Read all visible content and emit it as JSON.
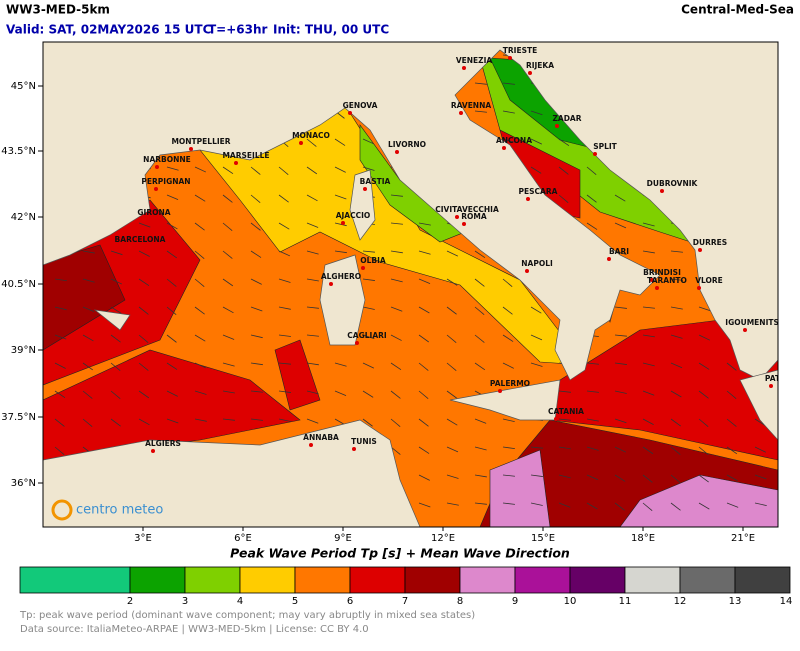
{
  "header": {
    "title": "WW3-MED-5km",
    "region": "Central-Med-Sea",
    "valid": "Valid: SAT, 02MAY2026 15 UTC",
    "lead": "T=+63hr",
    "init": "Init: THU, 00 UTC"
  },
  "map": {
    "lat_labels": [
      "45°N",
      "43.5°N",
      "42°N",
      "40.5°N",
      "39°N",
      "37.5°N",
      "36°N"
    ],
    "lon_labels": [
      "3°E",
      "6°E",
      "9°E",
      "12°E",
      "15°E",
      "18°E",
      "21°E"
    ],
    "cities": [
      "TRIESTE",
      "RIJEKA",
      "VENEZIA",
      "RAVENNA",
      "ZADAR",
      "ANCONA",
      "SPLIT",
      "GENOVA",
      "MONACO",
      "MONTPELLIER",
      "LIVORNO",
      "MARSEILLE",
      "NARBONNE",
      "BASTIA",
      "PERPIGNAN",
      "DUBROVNIK",
      "PESCARA",
      "CIVITAVECCHIA",
      "GIRONA",
      "ROMA",
      "AJACCIO",
      "DURRES",
      "BARCELONA",
      "BARI",
      "OLBIA",
      "NAPOLI",
      "BRINDISI",
      "ALGHERO",
      "TARANTO",
      "VLORE",
      "IGOUMENITSA",
      "CAGLIARI",
      "PATRAS",
      "PALERMO",
      "CATANIA",
      "ANNABA",
      "TUNIS",
      "ALGIERS"
    ],
    "logo": "centro meteo"
  },
  "legend": {
    "title": "Peak Wave Period Tp [s]  +  Mean Wave Direction",
    "ticks": [
      2,
      3,
      4,
      5,
      6,
      7,
      8,
      9,
      10,
      11,
      12,
      13,
      14
    ],
    "colors": [
      "#12c97a",
      "#0ca300",
      "#7fd000",
      "#ffcc00",
      "#ff7700",
      "#dd0000",
      "#a00000",
      "#dd88cc",
      "#aa1199",
      "#660066",
      "#d6d6d0",
      "#6a6a6a",
      "#404040"
    ]
  },
  "footer": [
    "Tp: peak wave period (dominant wave component; may vary abruptly in mixed sea states)",
    "Data source: ItaliaMeteo-ARPAE | WW3-MED-5km | License: CC BY 4.0"
  ]
}
